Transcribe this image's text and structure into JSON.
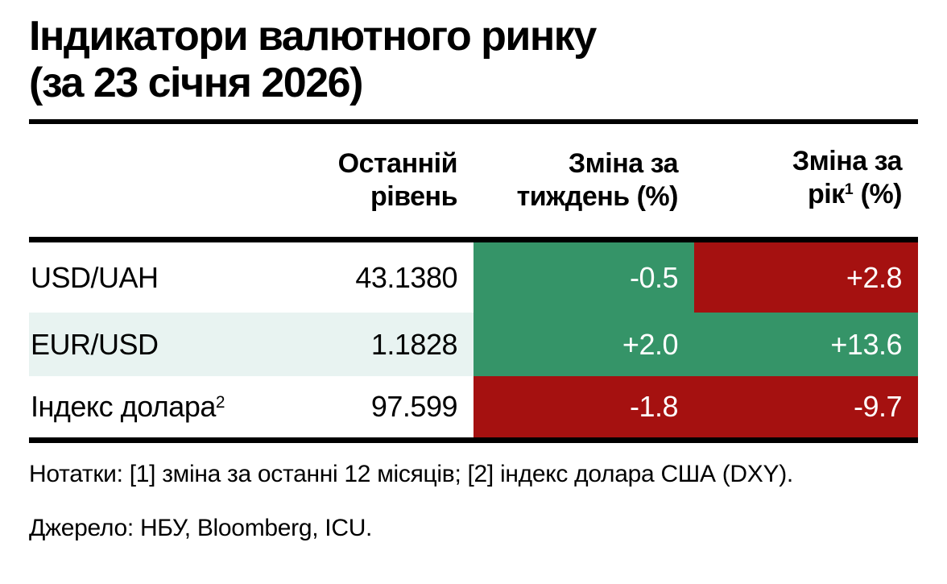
{
  "title": {
    "line1": "Індикатори валютного ринку",
    "line2": "(за 23 січня 2026)"
  },
  "table": {
    "headers": {
      "level": {
        "line1": "Останній",
        "line2": "рівень"
      },
      "week": {
        "line1": "Зміна за",
        "line2": "тиждень (%)"
      },
      "year": {
        "line1": "Зміна за",
        "line2_pre": "рік",
        "line2_sup": "1",
        "line2_post": " (%)"
      }
    },
    "rows": [
      {
        "label": "USD/UAH",
        "label_sup": "",
        "level": "43.1380",
        "week": {
          "value": "-0.5",
          "tone": "green"
        },
        "year": {
          "value": "+2.8",
          "tone": "red"
        },
        "row_tone": "white"
      },
      {
        "label": "EUR/USD",
        "label_sup": "",
        "level": "1.1828",
        "week": {
          "value": "+2.0",
          "tone": "green"
        },
        "year": {
          "value": "+13.6",
          "tone": "green"
        },
        "row_tone": "mint"
      },
      {
        "label": "Індекс долара",
        "label_sup": "2",
        "level": "97.599",
        "week": {
          "value": "-1.8",
          "tone": "red"
        },
        "year": {
          "value": "-9.7",
          "tone": "red"
        },
        "row_tone": "white"
      }
    ]
  },
  "notes": "Нотатки: [1] зміна за останні 12 місяців; [2] індекс долара США (DXY).",
  "source": "Джерело: НБУ, Bloomberg, ICU.",
  "colors": {
    "positive_green": "#359468",
    "negative_red": "#A51110",
    "row_highlight_mint": "#E8F3F1",
    "rule_black": "#000000",
    "cell_text_white": "#FFFFFF"
  },
  "chart_data": {
    "type": "table",
    "title": "Індикатори валютного ринку (за 23 січня 2026)",
    "columns": [
      "",
      "Останній рівень",
      "Зміна за тиждень (%)",
      "Зміна за рік1 (%)"
    ],
    "rows": [
      {
        "indicator": "USD/UAH",
        "last_level": 43.138,
        "week_change_pct": -0.5,
        "year_change_pct": 2.8,
        "week_cell_color": "green",
        "year_cell_color": "red"
      },
      {
        "indicator": "EUR/USD",
        "last_level": 1.1828,
        "week_change_pct": 2.0,
        "year_change_pct": 13.6,
        "week_cell_color": "green",
        "year_cell_color": "green"
      },
      {
        "indicator": "Індекс долара2",
        "last_level": 97.599,
        "week_change_pct": -1.8,
        "year_change_pct": -9.7,
        "week_cell_color": "red",
        "year_cell_color": "red"
      }
    ],
    "notes": "Нотатки: [1] зміна за останні 12 місяців; [2] індекс долара США (DXY).",
    "source": "Джерело: НБУ, Bloomberg, ICU."
  }
}
